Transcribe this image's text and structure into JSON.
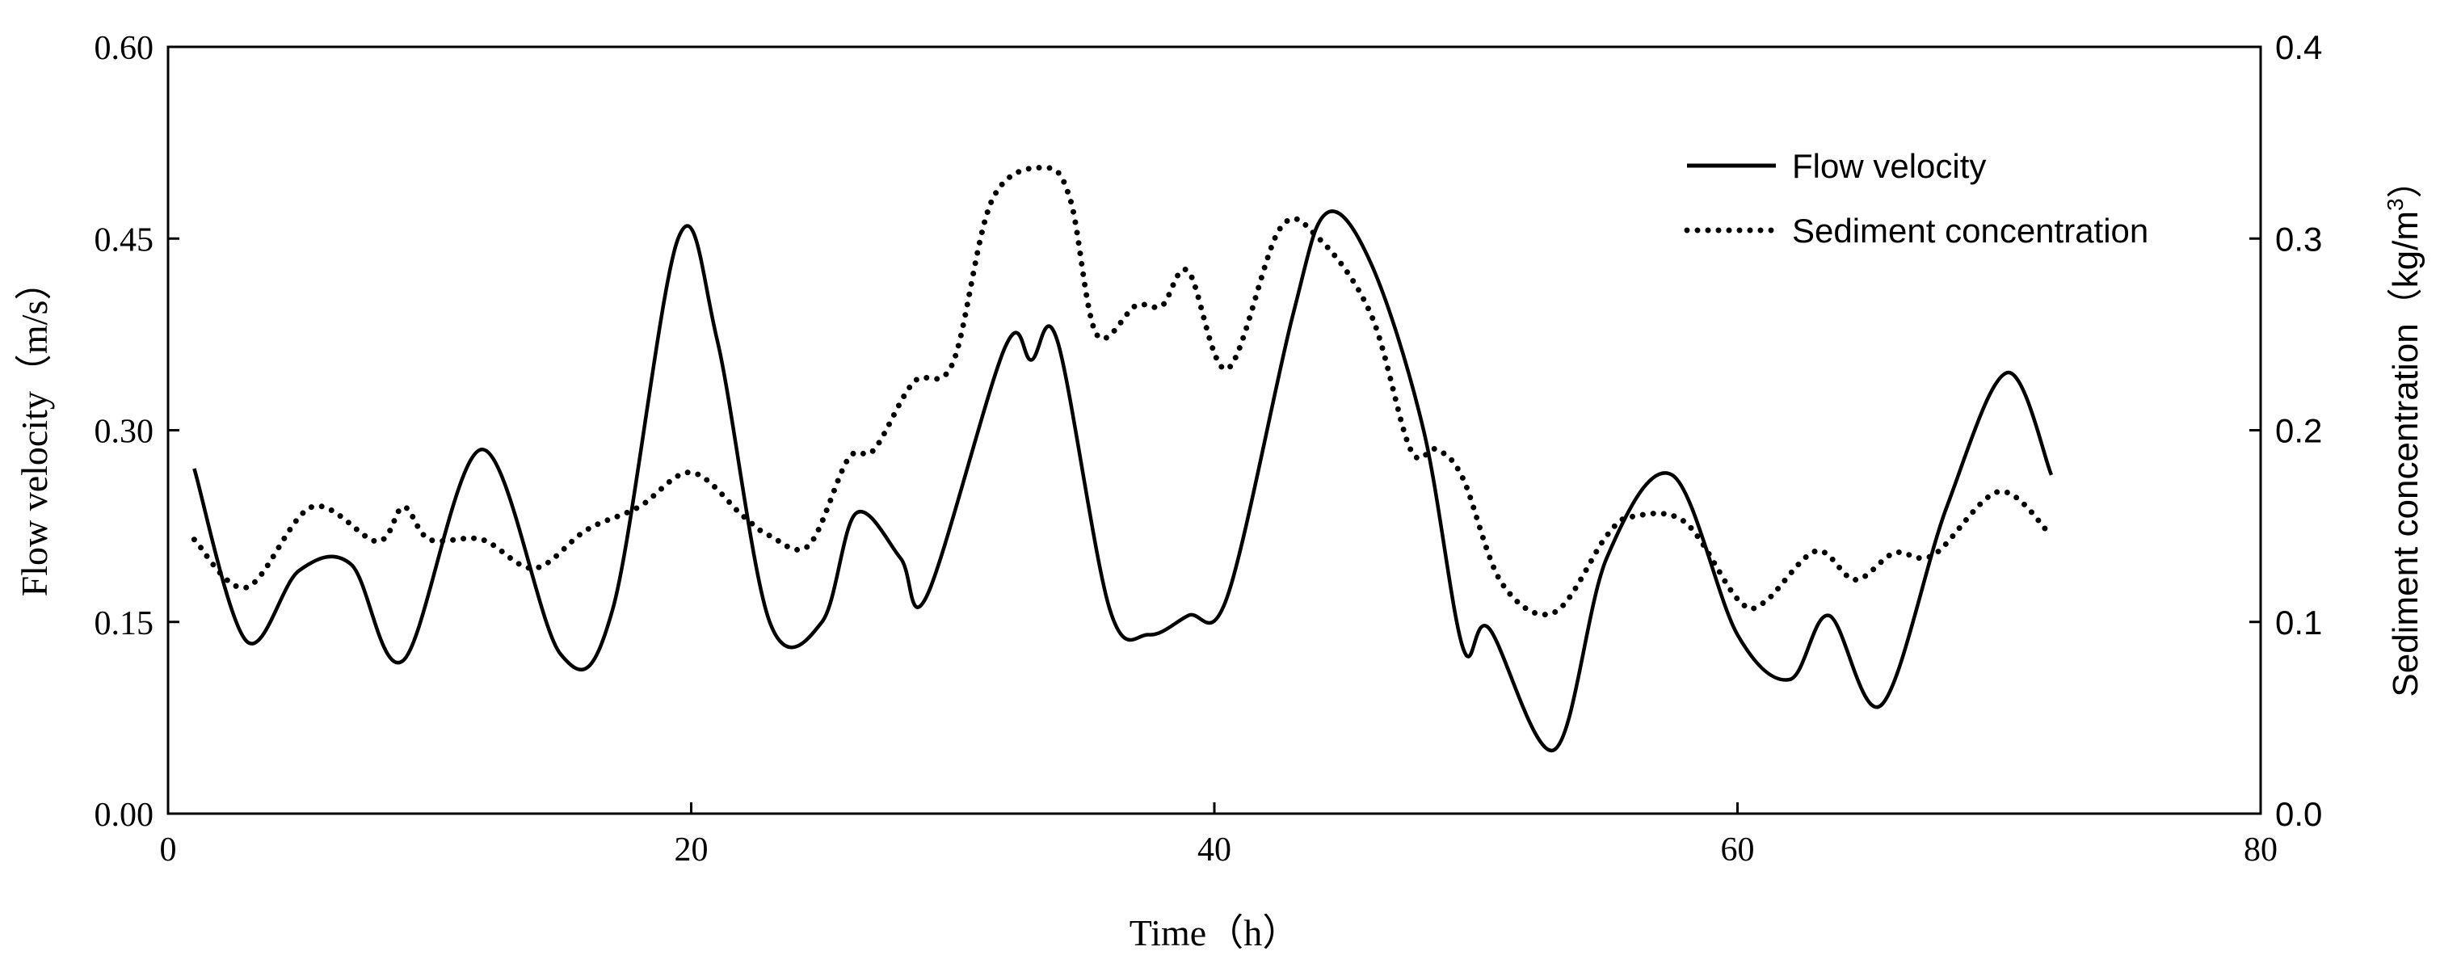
{
  "chart_data": {
    "type": "line",
    "title": "",
    "xlabel": "Time（h）",
    "ylabel": "Flow velocity（m/s）",
    "y2label": "Sediment concentration（kg/m",
    "y2label_sup": "3",
    "y2label_close": "）",
    "xlim": [
      0,
      80
    ],
    "ylim": [
      0,
      0.6
    ],
    "y2lim": [
      0,
      0.4
    ],
    "xticks": [
      "0",
      "20",
      "40",
      "60",
      "80"
    ],
    "yticks": [
      "0.00",
      "0.15",
      "0.30",
      "0.45",
      "0.60"
    ],
    "y2ticks": [
      "0.0",
      "0.1",
      "0.2",
      "0.3",
      "0.4"
    ],
    "grid": false,
    "legend_position": "top-right",
    "series": [
      {
        "name": "Flow velocity",
        "axis": "left",
        "style": "solid",
        "x": [
          1,
          3,
          5,
          7,
          9,
          12,
          15,
          17,
          19.5,
          21,
          23,
          25,
          26.3,
          28,
          29,
          32,
          33,
          34,
          36,
          37.5,
          39,
          40.5,
          43,
          44.3,
          46,
          48,
          49.5,
          50.5,
          53,
          55,
          57.5,
          60,
          62,
          63.5,
          65.5,
          68,
          70.3,
          72
        ],
        "y": [
          0.27,
          0.135,
          0.19,
          0.195,
          0.12,
          0.285,
          0.125,
          0.16,
          0.45,
          0.37,
          0.15,
          0.15,
          0.235,
          0.2,
          0.17,
          0.365,
          0.355,
          0.37,
          0.16,
          0.14,
          0.155,
          0.17,
          0.39,
          0.47,
          0.43,
          0.3,
          0.13,
          0.145,
          0.05,
          0.2,
          0.265,
          0.14,
          0.105,
          0.155,
          0.085,
          0.24,
          0.345,
          0.265
        ]
      },
      {
        "name": "Sediment concentration",
        "axis": "right",
        "style": "dotted",
        "x": [
          1,
          3,
          5.5,
          8,
          9,
          10,
          12,
          14,
          16,
          18,
          20,
          22,
          23,
          24.5,
          26,
          27,
          28.5,
          30,
          31.5,
          33.5,
          34.5,
          35.5,
          37,
          38,
          39,
          40.5,
          42.5,
          44,
          46,
          47.5,
          48.5,
          49.5,
          51,
          53,
          55,
          56,
          58,
          60,
          61,
          63,
          64.5,
          66,
          67.5,
          70,
          72
        ],
        "y": [
          0.143,
          0.118,
          0.16,
          0.142,
          0.16,
          0.143,
          0.143,
          0.128,
          0.148,
          0.16,
          0.178,
          0.155,
          0.145,
          0.14,
          0.185,
          0.19,
          0.225,
          0.235,
          0.32,
          0.337,
          0.32,
          0.25,
          0.265,
          0.265,
          0.283,
          0.232,
          0.305,
          0.3,
          0.26,
          0.19,
          0.19,
          0.175,
          0.12,
          0.105,
          0.145,
          0.155,
          0.152,
          0.112,
          0.11,
          0.137,
          0.122,
          0.136,
          0.135,
          0.168,
          0.145
        ]
      }
    ]
  }
}
